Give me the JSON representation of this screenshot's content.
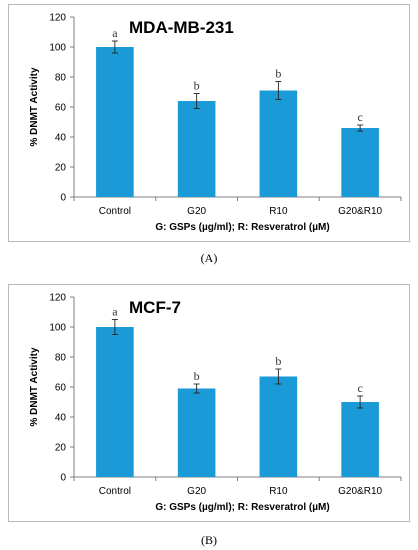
{
  "chart_data": [
    {
      "type": "bar",
      "title": "MDA-MB-231",
      "xlabel": "G: GSPs (µg/ml); R: Resveratrol (µM)",
      "ylabel": "% DNMT Activity",
      "categories": [
        "Control",
        "G20",
        "R10",
        "G20&R10"
      ],
      "values": [
        100,
        64,
        71,
        46
      ],
      "errors": [
        4,
        5,
        6,
        2
      ],
      "significance": [
        "a",
        "b",
        "b",
        "c"
      ],
      "ylim": [
        0,
        120
      ],
      "yticks": [
        "0",
        "20",
        "40",
        "60",
        "80",
        "100",
        "120"
      ],
      "bar_color": "#1a9ad6",
      "caption": "(A)"
    },
    {
      "type": "bar",
      "title": "MCF-7",
      "xlabel": "G: GSPs (µg/ml); R: Resveratrol (µM)",
      "ylabel": "% DNMT Activity",
      "categories": [
        "Control",
        "G20",
        "R10",
        "G20&R10"
      ],
      "values": [
        100,
        59,
        67,
        50
      ],
      "errors": [
        5,
        3,
        5,
        4
      ],
      "significance": [
        "a",
        "b",
        "b",
        "c"
      ],
      "ylim": [
        0,
        120
      ],
      "yticks": [
        "0",
        "20",
        "40",
        "60",
        "80",
        "100",
        "120"
      ],
      "bar_color": "#1a9ad6",
      "caption": "(B)"
    }
  ]
}
